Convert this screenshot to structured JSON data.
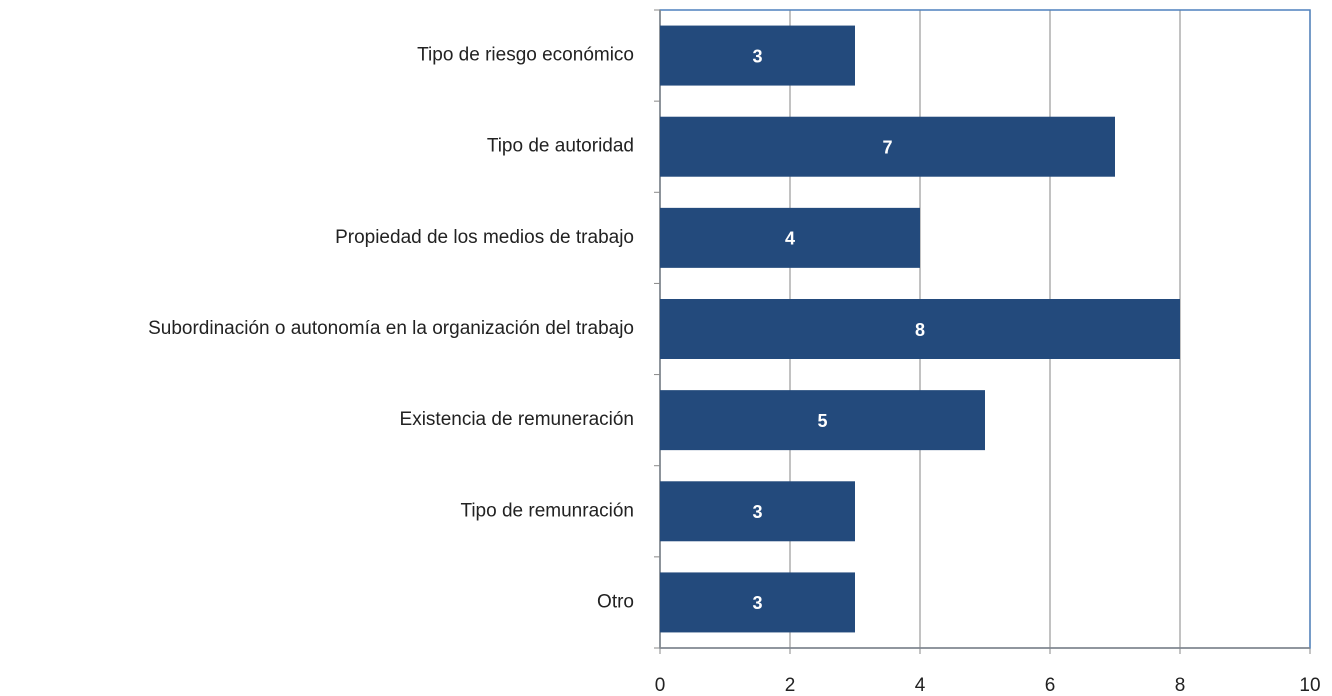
{
  "chart_data": {
    "type": "bar",
    "orientation": "horizontal",
    "categories": [
      "Tipo de riesgo económico",
      "Tipo de autoridad",
      "Propiedad de los medios de trabajo",
      "Subordinación o autonomía en la organización del trabajo",
      "Existencia de remuneración",
      "Tipo de remunración",
      "Otro"
    ],
    "values": [
      3,
      7,
      4,
      8,
      5,
      3,
      3
    ],
    "color": "#234a7c",
    "xlim": [
      0,
      10
    ],
    "xticks": [
      0,
      2,
      4,
      6,
      8,
      10
    ],
    "grid": true
  }
}
